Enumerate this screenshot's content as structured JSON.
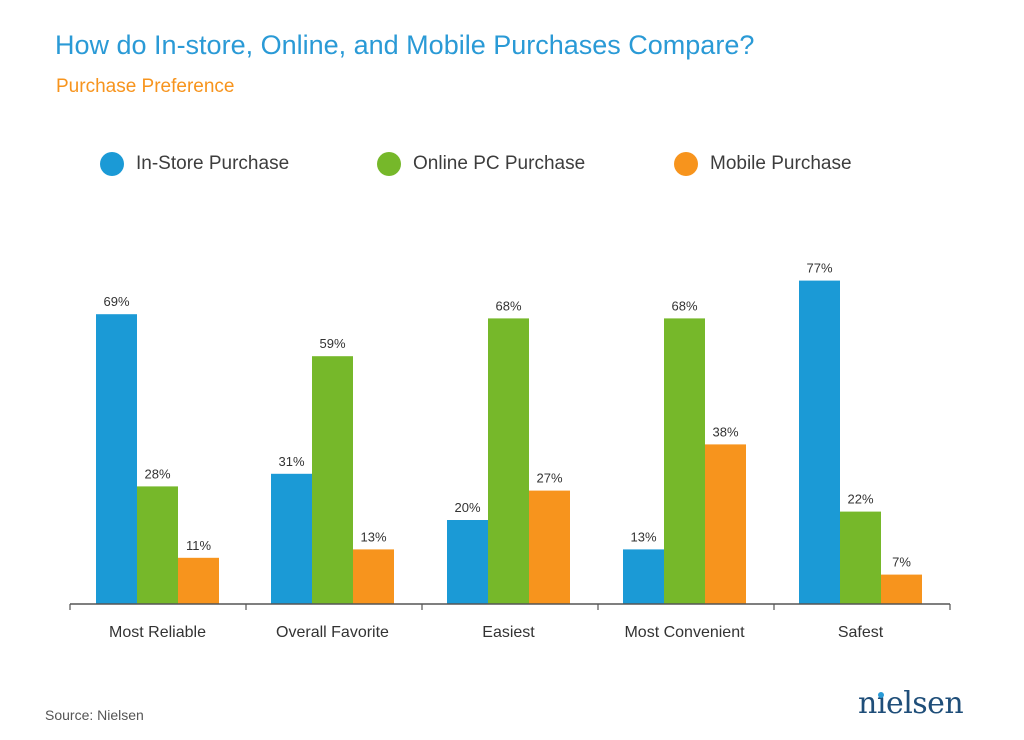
{
  "header": {
    "title": "How do In-store, Online, and Mobile Purchases Compare?",
    "subtitle": "Purchase Preference"
  },
  "legend": {
    "items": [
      {
        "label": "In-Store Purchase",
        "color": "#1b9ad6"
      },
      {
        "label": "Online PC Purchase",
        "color": "#76b82a"
      },
      {
        "label": "Mobile Purchase",
        "color": "#f7941d"
      }
    ]
  },
  "chart_data": {
    "type": "bar",
    "title": "How do In-store, Online, and Mobile Purchases Compare?",
    "subtitle": "Purchase Preference",
    "categories": [
      "Most Reliable",
      "Overall Favorite",
      "Easiest",
      "Most Convenient",
      "Safest"
    ],
    "series": [
      {
        "name": "In-Store Purchase",
        "color": "#1b9ad6",
        "values": [
          69,
          31,
          20,
          13,
          77
        ]
      },
      {
        "name": "Online PC Purchase",
        "color": "#76b82a",
        "values": [
          28,
          59,
          68,
          68,
          22
        ]
      },
      {
        "name": "Mobile Purchase",
        "color": "#f7941d",
        "values": [
          11,
          13,
          27,
          38,
          7
        ]
      }
    ],
    "value_suffix": "%",
    "ylim": [
      0,
      100
    ],
    "grid": false,
    "legend_position": "top"
  },
  "footer": {
    "source": "Source: Nielsen",
    "logo_text": "nielsen"
  }
}
